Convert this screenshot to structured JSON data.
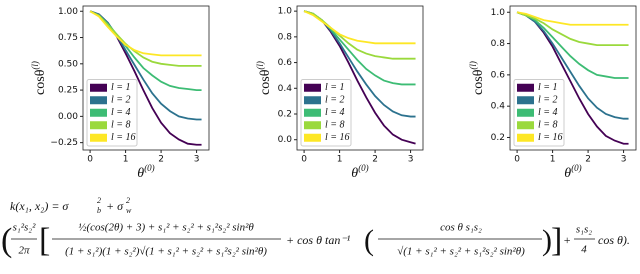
{
  "chart_data": [
    {
      "type": "line",
      "ylabel": {
        "base": "cosθ",
        "sup": "(l)"
      },
      "xlabel": {
        "base": "θ",
        "sup": "(0)"
      },
      "x": [
        0,
        0.25,
        0.5,
        0.75,
        1,
        1.25,
        1.5,
        1.75,
        2,
        2.25,
        2.5,
        2.75,
        3,
        3.14
      ],
      "xlim": [
        -0.2,
        3.35
      ],
      "xticks": [
        0,
        1,
        2,
        3
      ],
      "ylim": [
        -0.32,
        1.05
      ],
      "yticks": [
        {
          "value": -0.25,
          "label": "−0.25"
        },
        {
          "value": 0,
          "label": "0.00"
        },
        0.25,
        {
          "value": 0.5,
          "label": "0.50"
        },
        0.75,
        {
          "value": 1,
          "label": "1.00"
        }
      ],
      "legend": "lower left",
      "series": [
        {
          "name": "l = 1",
          "color": "#440154",
          "values": [
            1,
            0.97,
            0.89,
            0.76,
            0.6,
            0.43,
            0.25,
            0.08,
            -0.06,
            -0.16,
            -0.22,
            -0.26,
            -0.27,
            -0.27
          ]
        },
        {
          "name": "l = 2",
          "color": "#2c728e",
          "values": [
            1,
            0.97,
            0.89,
            0.77,
            0.63,
            0.49,
            0.35,
            0.22,
            0.12,
            0.05,
            0,
            -0.02,
            -0.03,
            -0.03
          ]
        },
        {
          "name": "l = 4",
          "color": "#3dbc74",
          "values": [
            1,
            0.96,
            0.88,
            0.78,
            0.67,
            0.56,
            0.46,
            0.39,
            0.33,
            0.29,
            0.27,
            0.26,
            0.25,
            0.25
          ]
        },
        {
          "name": "l = 8",
          "color": "#9ad93c",
          "values": [
            1,
            0.96,
            0.87,
            0.78,
            0.69,
            0.62,
            0.56,
            0.52,
            0.5,
            0.49,
            0.48,
            0.48,
            0.48,
            0.48
          ]
        },
        {
          "name": "l = 16",
          "color": "#fde725",
          "values": [
            1,
            0.95,
            0.85,
            0.76,
            0.68,
            0.63,
            0.6,
            0.59,
            0.58,
            0.58,
            0.58,
            0.58,
            0.58,
            0.58
          ]
        }
      ]
    },
    {
      "type": "line",
      "ylabel": {
        "base": "cosθ",
        "sup": "(l)"
      },
      "xlabel": {
        "base": "θ",
        "sup": "(0)"
      },
      "x": [
        0,
        0.25,
        0.5,
        0.75,
        1,
        1.25,
        1.5,
        1.75,
        2,
        2.25,
        2.5,
        2.75,
        3,
        3.14
      ],
      "xlim": [
        -0.2,
        3.35
      ],
      "xticks": [
        0,
        1,
        2,
        3
      ],
      "ylim": [
        -0.08,
        1.04
      ],
      "yticks": [
        {
          "value": 0,
          "label": "0.0"
        },
        0.2,
        0.4,
        0.6,
        0.8,
        {
          "value": 1,
          "label": "1.0"
        }
      ],
      "legend": "lower left",
      "series": [
        {
          "name": "l = 1",
          "color": "#440154",
          "values": [
            1,
            0.98,
            0.93,
            0.84,
            0.73,
            0.6,
            0.46,
            0.33,
            0.21,
            0.11,
            0.04,
            0,
            -0.02,
            -0.03
          ]
        },
        {
          "name": "l = 2",
          "color": "#2c728e",
          "values": [
            1,
            0.98,
            0.93,
            0.85,
            0.75,
            0.64,
            0.53,
            0.43,
            0.34,
            0.27,
            0.22,
            0.19,
            0.18,
            0.18
          ]
        },
        {
          "name": "l = 4",
          "color": "#3dbc74",
          "values": [
            1,
            0.98,
            0.93,
            0.86,
            0.78,
            0.7,
            0.62,
            0.55,
            0.5,
            0.46,
            0.44,
            0.43,
            0.43,
            0.43
          ]
        },
        {
          "name": "l = 8",
          "color": "#9ad93c",
          "values": [
            1,
            0.98,
            0.93,
            0.87,
            0.81,
            0.75,
            0.7,
            0.67,
            0.65,
            0.64,
            0.63,
            0.63,
            0.63,
            0.63
          ]
        },
        {
          "name": "l = 16",
          "color": "#fde725",
          "values": [
            1,
            0.97,
            0.92,
            0.87,
            0.82,
            0.79,
            0.77,
            0.76,
            0.75,
            0.75,
            0.75,
            0.75,
            0.75,
            0.75
          ]
        }
      ]
    },
    {
      "type": "line",
      "ylabel": {
        "base": "cosθ",
        "sup": "(l)"
      },
      "xlabel": {
        "base": "θ",
        "sup": "(0)"
      },
      "x": [
        0,
        0.25,
        0.5,
        0.75,
        1,
        1.25,
        1.5,
        1.75,
        2,
        2.25,
        2.5,
        2.75,
        3,
        3.14
      ],
      "xlim": [
        -0.2,
        3.35
      ],
      "xticks": [
        0,
        1,
        2,
        3
      ],
      "ylim": [
        0.12,
        1.04
      ],
      "yticks": [
        0.2,
        0.4,
        0.6,
        0.8,
        {
          "value": 1,
          "label": "1.0"
        }
      ],
      "legend": "lower left",
      "series": [
        {
          "name": "l = 1",
          "color": "#440154",
          "values": [
            1,
            0.98,
            0.94,
            0.87,
            0.78,
            0.67,
            0.56,
            0.45,
            0.35,
            0.27,
            0.21,
            0.18,
            0.16,
            0.16
          ]
        },
        {
          "name": "l = 2",
          "color": "#2c728e",
          "values": [
            1,
            0.98,
            0.94,
            0.88,
            0.8,
            0.71,
            0.62,
            0.53,
            0.45,
            0.39,
            0.35,
            0.33,
            0.32,
            0.32
          ]
        },
        {
          "name": "l = 4",
          "color": "#3dbc74",
          "values": [
            1,
            0.98,
            0.95,
            0.9,
            0.84,
            0.78,
            0.72,
            0.67,
            0.63,
            0.6,
            0.59,
            0.58,
            0.58,
            0.58
          ]
        },
        {
          "name": "l = 8",
          "color": "#9ad93c",
          "values": [
            1,
            0.98,
            0.96,
            0.93,
            0.89,
            0.86,
            0.83,
            0.81,
            0.8,
            0.79,
            0.79,
            0.79,
            0.79,
            0.79
          ]
        },
        {
          "name": "l = 16",
          "color": "#fde725",
          "values": [
            1,
            0.99,
            0.97,
            0.95,
            0.94,
            0.93,
            0.92,
            0.92,
            0.92,
            0.92,
            0.92,
            0.92,
            0.92,
            0.92
          ]
        }
      ]
    }
  ],
  "equation": {
    "pieces": [
      "k(x₁, x₂) = σ",
      "2",
      "b",
      "+ σ",
      "2",
      "w",
      "(",
      "s₁²s₂²",
      "2π",
      "[",
      "½(cos(2θ) + 3) + s₁² + s₂² + s₁²s₂² sin²θ",
      "(1 + s₁²)(1 + s₂²)√(1 + s₁² + s₂² + s₁²s₂² sin²θ)",
      "+ cos θ tan⁻¹",
      "(",
      "cos θ s₁s₂",
      "√(1 + s₁² + s₂² + s₁²s₂² sin²θ)",
      ")",
      "]",
      "+",
      "s₁s₂",
      "4",
      "cos θ)."
    ]
  }
}
